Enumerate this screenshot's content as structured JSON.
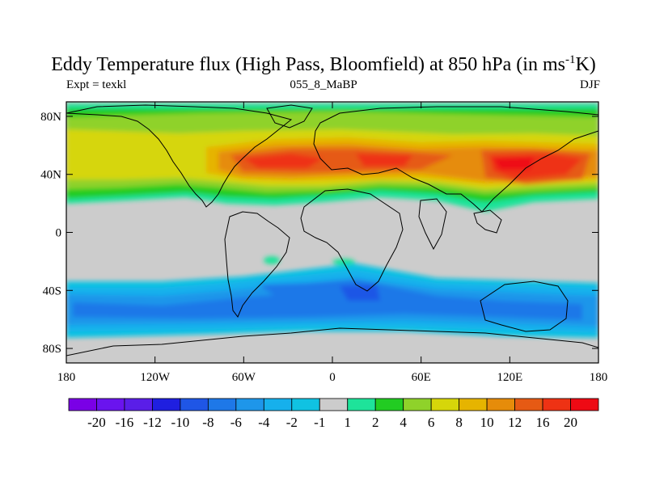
{
  "title": {
    "main": "Eddy Temperature flux (High Pass, Bloomfield) at 850 hPa (in ms",
    "sup": "-1",
    "tail": "K)"
  },
  "subtitle": {
    "left": "Expt = texkl",
    "center": "055_8_MaBP",
    "right": "DJF"
  },
  "chart_data": {
    "type": "filled-contour map",
    "projection": "cylindrical equidistant",
    "x_range": [
      -180,
      180
    ],
    "y_range": [
      -90,
      90
    ],
    "x_ticks": [
      "180",
      "120W",
      "60W",
      "0",
      "60E",
      "120E",
      "180"
    ],
    "y_ticks": [
      "80N",
      "40N",
      "0",
      "40S",
      "80S"
    ],
    "colorbar_labels": [
      "-20",
      "-16",
      "-12",
      "-10",
      "-8",
      "-6",
      "-4",
      "-2",
      "-1",
      "1",
      "2",
      "4",
      "6",
      "8",
      "10",
      "12",
      "16",
      "20"
    ],
    "colors": {
      "lt_neg20": "#7a00e6",
      "neg20_neg16": "#6a14ee",
      "neg16_neg12": "#5a1ee8",
      "neg12_neg10": "#1f1fe0",
      "neg10_neg8": "#1f56e6",
      "neg8_neg6": "#1e78e8",
      "neg6_neg4": "#1e96ea",
      "neg4_neg2": "#16b0ec",
      "neg2_neg1": "#10c2e2",
      "neg1_1": "#cccccc",
      "1_2": "#1ee39a",
      "2_4": "#22cc22",
      "4_6": "#8fd22a",
      "6_8": "#d6d60a",
      "8_10": "#e6b400",
      "10_12": "#e68c0a",
      "12_16": "#e65a14",
      "16_20": "#ee3214",
      "gt_20": "#ee0a14"
    }
  }
}
